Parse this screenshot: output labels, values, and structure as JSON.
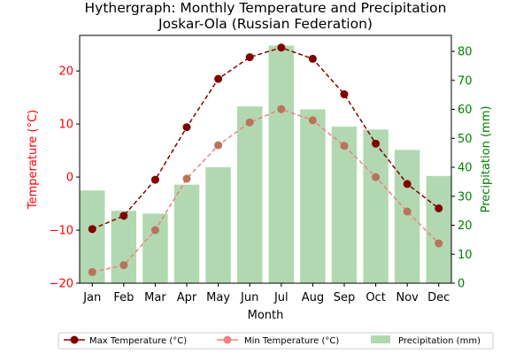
{
  "chart_data": {
    "type": "bar+line",
    "title": "Hythergraph: Monthly Temperature and Precipitation",
    "subtitle": "Joskar-Ola (Russian Federation)",
    "xlabel": "Month",
    "ylabel_left": "Temperature (°C)",
    "ylabel_right": "Precipitation (mm)",
    "categories": [
      "Jan",
      "Feb",
      "Mar",
      "Apr",
      "May",
      "Jun",
      "Jul",
      "Aug",
      "Sep",
      "Oct",
      "Nov",
      "Dec"
    ],
    "left_ylim": [
      -20,
      26.7
    ],
    "left_ticks": [
      -20,
      -10,
      0,
      10,
      20
    ],
    "right_ylim": [
      0,
      85.5
    ],
    "right_ticks": [
      0,
      10,
      20,
      30,
      40,
      50,
      60,
      70,
      80
    ],
    "series": [
      {
        "name": "Max Temperature (°C)",
        "kind": "line",
        "axis": "left",
        "color": "#800000",
        "values": [
          -9.8,
          -7.3,
          -0.5,
          9.4,
          18.5,
          22.6,
          24.4,
          22.3,
          15.6,
          6.3,
          -1.3,
          -5.9
        ]
      },
      {
        "name": "Min Temperature (°C)",
        "kind": "line",
        "axis": "left",
        "color": "#f08080",
        "values": [
          -17.9,
          -16.6,
          -10.0,
          -0.3,
          6.0,
          10.3,
          12.8,
          10.7,
          5.9,
          0.0,
          -6.5,
          -12.5
        ]
      },
      {
        "name": "Precipitation (mm)",
        "kind": "bar",
        "axis": "right",
        "color": "#b2d8b2",
        "values": [
          32,
          25,
          24,
          34,
          40,
          61,
          82,
          60,
          54,
          53,
          46,
          37
        ]
      }
    ],
    "legend": "bottom-center",
    "left_axis_color": "#ff0000",
    "right_axis_color": "#008000"
  }
}
